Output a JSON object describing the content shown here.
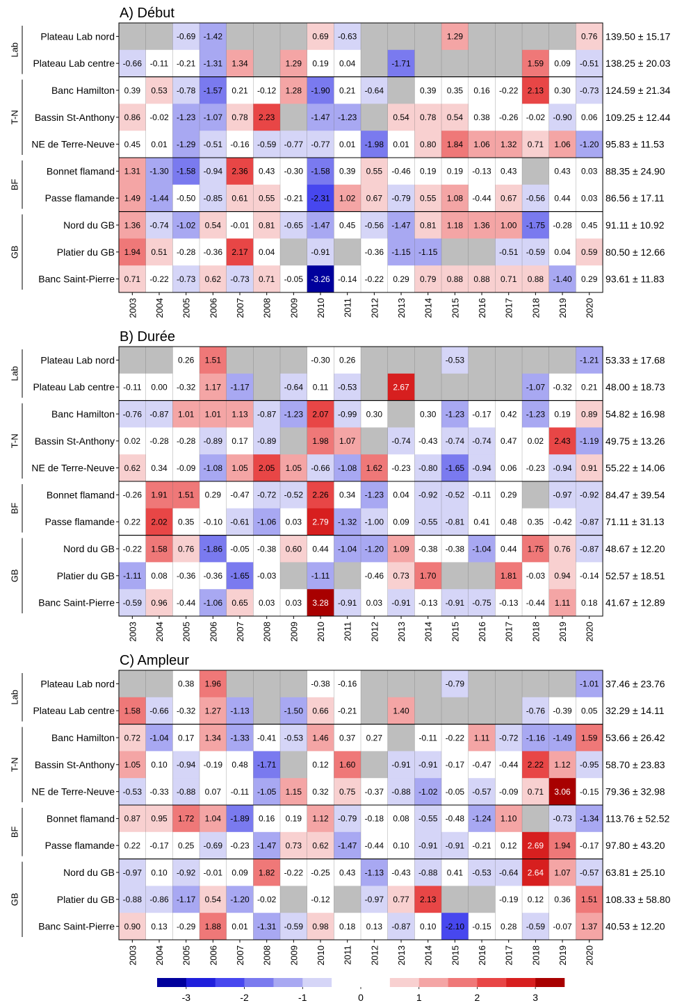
{
  "chart_data": [
    {
      "type": "heatmap",
      "title": "A) Début",
      "years": [
        "2003",
        "2004",
        "2005",
        "2006",
        "2007",
        "2008",
        "2009",
        "2010",
        "2011",
        "2012",
        "2013",
        "2014",
        "2015",
        "2016",
        "2017",
        "2018",
        "2019",
        "2020"
      ],
      "groups": [
        {
          "label": "Lab",
          "rows": [
            0,
            1
          ]
        },
        {
          "label": "T-N",
          "rows": [
            2,
            3,
            4
          ]
        },
        {
          "label": "BF",
          "rows": [
            5,
            6
          ]
        },
        {
          "label": "GB",
          "rows": [
            7,
            8,
            9
          ]
        }
      ],
      "rows": [
        {
          "name": "Plateau Lab nord",
          "summary": "139.50 ± 15.17",
          "values": [
            null,
            null,
            -0.69,
            -1.42,
            null,
            null,
            null,
            0.69,
            -0.63,
            null,
            null,
            null,
            1.29,
            null,
            null,
            null,
            null,
            0.76
          ]
        },
        {
          "name": "Plateau Lab centre",
          "summary": "138.25 ± 20.03",
          "values": [
            -0.66,
            -0.11,
            -0.21,
            -1.31,
            1.34,
            null,
            1.29,
            0.19,
            0.04,
            null,
            -1.71,
            null,
            null,
            null,
            null,
            1.59,
            0.09,
            -0.51
          ]
        },
        {
          "name": "Banc Hamilton",
          "summary": "124.59 ± 21.34",
          "values": [
            0.39,
            0.53,
            -0.78,
            -1.57,
            0.21,
            -0.12,
            1.28,
            -1.9,
            0.21,
            -0.64,
            null,
            0.39,
            0.35,
            0.16,
            -0.22,
            2.13,
            0.3,
            -0.73
          ]
        },
        {
          "name": "Bassin St-Anthony",
          "summary": "109.25 ± 12.44",
          "values": [
            0.86,
            -0.02,
            -1.23,
            -1.07,
            0.78,
            2.23,
            null,
            -1.47,
            -1.23,
            null,
            0.54,
            0.78,
            0.54,
            0.38,
            -0.26,
            -0.02,
            -0.9,
            0.06
          ]
        },
        {
          "name": "NE de Terre-Neuve",
          "summary": "95.83 ± 11.53",
          "values": [
            0.45,
            0.01,
            -1.29,
            -0.51,
            -0.16,
            -0.59,
            -0.77,
            -0.77,
            0.01,
            -1.98,
            0.01,
            0.8,
            1.84,
            1.06,
            1.32,
            0.71,
            1.06,
            -1.2
          ]
        },
        {
          "name": "Bonnet flamand",
          "summary": "88.35 ± 24.90",
          "values": [
            1.31,
            -1.3,
            -1.58,
            -0.94,
            2.36,
            0.43,
            -0.3,
            -1.58,
            0.39,
            0.55,
            -0.46,
            0.19,
            0.19,
            -0.13,
            0.43,
            null,
            0.43,
            0.03
          ]
        },
        {
          "name": "Passe flamande",
          "summary": "86.56 ± 17.11",
          "values": [
            1.49,
            -1.44,
            -0.5,
            -0.85,
            0.61,
            0.55,
            -0.21,
            -2.31,
            1.02,
            0.67,
            -0.79,
            0.55,
            1.08,
            -0.44,
            0.67,
            -0.56,
            0.44,
            0.03
          ]
        },
        {
          "name": "Nord du GB",
          "summary": "91.11 ± 10.92",
          "values": [
            1.36,
            -0.74,
            -1.02,
            0.54,
            -0.01,
            0.81,
            -0.65,
            -1.47,
            0.45,
            -0.56,
            -1.47,
            0.81,
            1.18,
            1.36,
            1.0,
            -1.75,
            -0.28,
            0.45
          ]
        },
        {
          "name": "Platier du GB",
          "summary": "80.50 ± 12.66",
          "values": [
            1.94,
            0.51,
            -0.28,
            -0.36,
            2.17,
            0.04,
            null,
            -0.91,
            null,
            -0.36,
            -1.15,
            -1.15,
            null,
            null,
            -0.51,
            -0.59,
            0.04,
            0.59
          ]
        },
        {
          "name": "Banc Saint-Pierre",
          "summary": "93.61 ± 11.83",
          "values": [
            0.71,
            -0.22,
            -0.73,
            0.62,
            -0.73,
            0.71,
            -0.05,
            -3.26,
            -0.14,
            -0.22,
            0.29,
            0.79,
            0.88,
            0.88,
            0.71,
            0.88,
            -1.4,
            0.29
          ]
        }
      ]
    },
    {
      "type": "heatmap",
      "title": "B) Durée",
      "years": [
        "2003",
        "2004",
        "2005",
        "2006",
        "2007",
        "2008",
        "2009",
        "2010",
        "2011",
        "2012",
        "2013",
        "2014",
        "2015",
        "2016",
        "2017",
        "2018",
        "2019",
        "2020"
      ],
      "groups": [
        {
          "label": "Lab",
          "rows": [
            0,
            1
          ]
        },
        {
          "label": "T-N",
          "rows": [
            2,
            3,
            4
          ]
        },
        {
          "label": "BF",
          "rows": [
            5,
            6
          ]
        },
        {
          "label": "GB",
          "rows": [
            7,
            8,
            9
          ]
        }
      ],
      "rows": [
        {
          "name": "Plateau Lab nord",
          "summary": "53.33 ± 17.68",
          "values": [
            null,
            null,
            0.26,
            1.51,
            null,
            null,
            null,
            -0.3,
            0.26,
            null,
            null,
            null,
            -0.53,
            null,
            null,
            null,
            null,
            -1.21
          ]
        },
        {
          "name": "Plateau Lab centre",
          "summary": "48.00 ± 18.73",
          "values": [
            -0.11,
            0.0,
            -0.32,
            1.17,
            -1.17,
            null,
            -0.64,
            0.11,
            -0.53,
            null,
            2.67,
            null,
            null,
            null,
            null,
            -1.07,
            -0.32,
            0.21
          ]
        },
        {
          "name": "Banc Hamilton",
          "summary": "54.82 ± 16.98",
          "values": [
            -0.76,
            -0.87,
            1.01,
            1.01,
            1.13,
            -0.87,
            -1.23,
            2.07,
            -0.99,
            0.3,
            null,
            0.3,
            -1.23,
            -0.17,
            0.42,
            -1.23,
            0.19,
            0.89
          ]
        },
        {
          "name": "Bassin St-Anthony",
          "summary": "49.75 ± 13.26",
          "values": [
            0.02,
            -0.28,
            -0.28,
            -0.89,
            0.17,
            -0.89,
            null,
            1.98,
            1.07,
            null,
            -0.74,
            -0.43,
            -0.74,
            -0.74,
            0.47,
            0.02,
            2.43,
            -1.19
          ]
        },
        {
          "name": "NE de Terre-Neuve",
          "summary": "55.22 ± 14.06",
          "values": [
            0.62,
            0.34,
            -0.09,
            -1.08,
            1.05,
            2.05,
            1.05,
            -0.66,
            -1.08,
            1.62,
            -0.23,
            -0.8,
            -1.65,
            -0.94,
            0.06,
            -0.23,
            -0.94,
            0.91
          ]
        },
        {
          "name": "Bonnet flamand",
          "summary": "84.47 ± 39.54",
          "values": [
            -0.26,
            1.91,
            1.51,
            0.29,
            -0.47,
            -0.72,
            -0.52,
            2.26,
            0.34,
            -1.23,
            0.04,
            -0.92,
            -0.52,
            -0.11,
            0.29,
            null,
            -0.97,
            -0.92
          ]
        },
        {
          "name": "Passe flamande",
          "summary": "71.11 ± 31.13",
          "values": [
            0.22,
            2.02,
            0.35,
            -0.1,
            -0.61,
            -1.06,
            0.03,
            2.79,
            -1.32,
            -1.0,
            0.09,
            -0.55,
            -0.81,
            0.41,
            0.48,
            0.35,
            -0.42,
            -0.87
          ]
        },
        {
          "name": "Nord du GB",
          "summary": "48.67 ± 12.20",
          "values": [
            -0.22,
            1.58,
            0.76,
            -1.86,
            -0.05,
            -0.38,
            0.6,
            0.44,
            -1.04,
            -1.2,
            1.09,
            -0.38,
            -0.38,
            -1.04,
            0.44,
            1.75,
            0.76,
            -0.87
          ]
        },
        {
          "name": "Platier du GB",
          "summary": "52.57 ± 18.51",
          "values": [
            -1.11,
            0.08,
            -0.36,
            -0.36,
            -1.65,
            -0.03,
            null,
            -1.11,
            null,
            -0.46,
            0.73,
            1.7,
            null,
            null,
            1.81,
            -0.03,
            0.94,
            -0.14
          ]
        },
        {
          "name": "Banc Saint-Pierre",
          "summary": "41.67 ± 12.89",
          "values": [
            -0.59,
            0.96,
            -0.44,
            -1.06,
            0.65,
            0.03,
            0.03,
            3.28,
            -0.91,
            0.03,
            -0.91,
            -0.13,
            -0.91,
            -0.75,
            -0.13,
            -0.44,
            1.11,
            0.18
          ]
        }
      ]
    },
    {
      "type": "heatmap",
      "title": "C) Ampleur",
      "years": [
        "2003",
        "2004",
        "2005",
        "2006",
        "2007",
        "2008",
        "2009",
        "2010",
        "2011",
        "2012",
        "2013",
        "2014",
        "2015",
        "2016",
        "2017",
        "2018",
        "2019",
        "2020"
      ],
      "groups": [
        {
          "label": "Lab",
          "rows": [
            0,
            1
          ]
        },
        {
          "label": "T-N",
          "rows": [
            2,
            3,
            4
          ]
        },
        {
          "label": "BF",
          "rows": [
            5,
            6
          ]
        },
        {
          "label": "GB",
          "rows": [
            7,
            8,
            9
          ]
        }
      ],
      "rows": [
        {
          "name": "Plateau Lab nord",
          "summary": "37.46 ± 23.76",
          "values": [
            null,
            null,
            0.38,
            1.96,
            null,
            null,
            null,
            -0.38,
            -0.16,
            null,
            null,
            null,
            -0.79,
            null,
            null,
            null,
            null,
            -1.01
          ]
        },
        {
          "name": "Plateau Lab centre",
          "summary": "32.29 ± 14.11",
          "values": [
            1.58,
            -0.66,
            -0.32,
            1.27,
            -1.13,
            null,
            -1.5,
            0.66,
            -0.21,
            null,
            1.4,
            null,
            null,
            null,
            null,
            -0.76,
            -0.39,
            0.05
          ]
        },
        {
          "name": "Banc Hamilton",
          "summary": "53.66 ± 26.42",
          "values": [
            0.72,
            -1.04,
            0.17,
            1.34,
            -1.33,
            -0.41,
            -0.53,
            1.46,
            0.37,
            0.27,
            null,
            -0.11,
            -0.22,
            1.11,
            -0.72,
            -1.16,
            -1.49,
            1.59
          ]
        },
        {
          "name": "Bassin St-Anthony",
          "summary": "58.70 ± 23.83",
          "values": [
            1.05,
            0.1,
            -0.94,
            -0.19,
            0.48,
            -1.71,
            null,
            0.12,
            1.6,
            null,
            -0.91,
            -0.91,
            -0.17,
            -0.47,
            -0.44,
            2.22,
            1.12,
            -0.95
          ]
        },
        {
          "name": "NE de Terre-Neuve",
          "summary": "79.36 ± 32.98",
          "values": [
            -0.53,
            -0.33,
            -0.88,
            0.07,
            -0.11,
            -1.05,
            1.15,
            0.32,
            0.75,
            -0.37,
            -0.88,
            -1.02,
            -0.05,
            -0.57,
            -0.09,
            0.71,
            3.06,
            -0.15
          ]
        },
        {
          "name": "Bonnet flamand",
          "summary": "113.76 ± 52.52",
          "values": [
            0.87,
            0.95,
            1.72,
            1.04,
            -1.89,
            0.16,
            0.19,
            1.12,
            -0.79,
            -0.18,
            0.08,
            -0.55,
            -0.48,
            -1.24,
            1.1,
            null,
            -0.73,
            -1.34
          ]
        },
        {
          "name": "Passe flamande",
          "summary": "97.80 ± 43.20",
          "values": [
            0.22,
            -0.17,
            0.25,
            -0.69,
            -0.23,
            -1.47,
            0.73,
            0.62,
            -1.47,
            -0.44,
            0.1,
            -0.91,
            -0.91,
            -0.21,
            0.12,
            2.69,
            1.94,
            -0.17
          ]
        },
        {
          "name": "Nord du GB",
          "summary": "63.81 ± 25.10",
          "values": [
            -0.97,
            0.1,
            -0.92,
            -0.01,
            0.09,
            1.82,
            -0.22,
            -0.25,
            0.43,
            -1.13,
            -0.43,
            -0.88,
            0.41,
            -0.53,
            -0.64,
            2.64,
            1.07,
            -0.57
          ]
        },
        {
          "name": "Platier du GB",
          "summary": "108.33 ± 58.80",
          "values": [
            -0.88,
            -0.86,
            -1.17,
            0.54,
            -1.2,
            -0.02,
            null,
            -0.12,
            null,
            -0.97,
            0.77,
            2.13,
            null,
            null,
            -0.19,
            0.12,
            0.36,
            1.51
          ]
        },
        {
          "name": "Banc Saint-Pierre",
          "summary": "40.53 ± 12.20",
          "values": [
            0.9,
            0.13,
            -0.29,
            1.88,
            0.01,
            -1.31,
            -0.59,
            0.98,
            0.18,
            0.13,
            -0.87,
            0.1,
            -2.1,
            -0.15,
            0.28,
            -0.59,
            -0.07,
            1.37
          ]
        }
      ]
    }
  ],
  "legend": {
    "ticks": [
      "-3",
      "-2",
      "-1",
      "0",
      "1",
      "2",
      "3"
    ],
    "colors": [
      "#00009c",
      "#1f1fdc",
      "#4747ef",
      "#7a7aef",
      "#a8a8f2",
      "#d5d5f7",
      "#ffffff",
      "#ffffff",
      "#f8d0d0",
      "#f4a5a5",
      "#ef7878",
      "#e84646",
      "#d71f1f",
      "#a80000"
    ]
  },
  "missing_color": "#bebebe"
}
